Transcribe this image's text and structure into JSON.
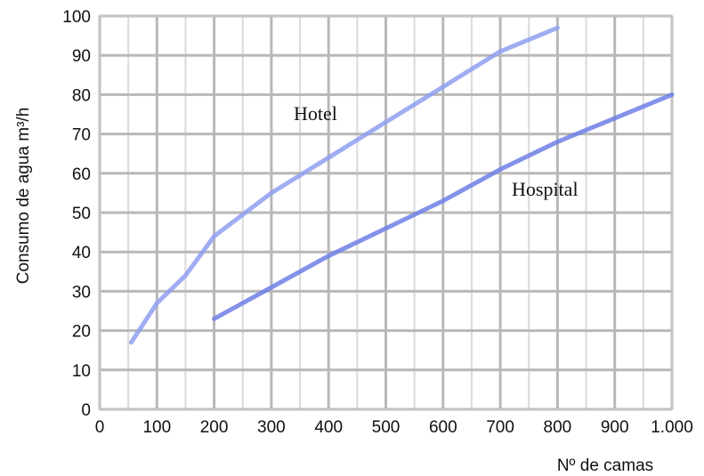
{
  "chart_data": {
    "type": "line",
    "xlabel": "Nº de camas",
    "ylabel": "Consumo de agua m³/h",
    "xlim": [
      0,
      1000
    ],
    "ylim": [
      0,
      100
    ],
    "x_ticks": [
      "0",
      "100",
      "200",
      "300",
      "400",
      "500",
      "600",
      "700",
      "800",
      "900",
      "1.000"
    ],
    "y_ticks": [
      "0",
      "10",
      "20",
      "30",
      "40",
      "50",
      "60",
      "70",
      "80",
      "90",
      "100"
    ],
    "grid": true,
    "series": [
      {
        "name": "Hotel",
        "color": "#8f9ff0",
        "x": [
          55,
          100,
          150,
          200,
          300,
          400,
          500,
          600,
          700,
          800
        ],
        "y": [
          17,
          27,
          34,
          44,
          55,
          64,
          73,
          82,
          91,
          97
        ]
      },
      {
        "name": "Hospital",
        "color": "#6f7fe6",
        "x": [
          200,
          300,
          400,
          500,
          600,
          700,
          800,
          900,
          1000
        ],
        "y": [
          23,
          31,
          39,
          46,
          53,
          61,
          68,
          74,
          80
        ]
      }
    ]
  }
}
